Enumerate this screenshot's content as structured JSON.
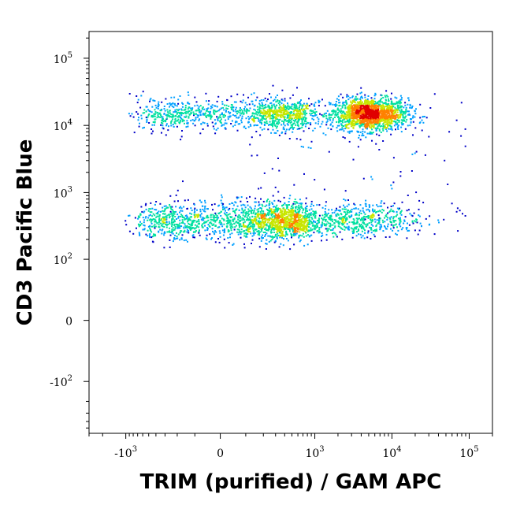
{
  "chart_data": {
    "type": "scatter",
    "title": "",
    "xlabel": "TRIM (purified) / GAM APC",
    "ylabel": "CD3 Pacific Blue",
    "x_scale": "biexponential",
    "y_scale": "biexponential",
    "xlim": [
      -3000,
      200000
    ],
    "ylim": [
      -600,
      250000
    ],
    "x_ticks": [
      {
        "value": -1000,
        "base": "-10",
        "exp": "3"
      },
      {
        "value": 0,
        "base": "0",
        "exp": ""
      },
      {
        "value": 1000,
        "base": "10",
        "exp": "3"
      },
      {
        "value": 10000,
        "base": "10",
        "exp": "4"
      },
      {
        "value": 100000,
        "base": "10",
        "exp": "5"
      }
    ],
    "y_ticks": [
      {
        "value": 100000,
        "base": "10",
        "exp": "5"
      },
      {
        "value": 10000,
        "base": "10",
        "exp": "4"
      },
      {
        "value": 1000,
        "base": "10",
        "exp": "3"
      },
      {
        "value": 100,
        "base": "10",
        "exp": "2"
      },
      {
        "value": 0,
        "base": "0",
        "exp": ""
      },
      {
        "value": -100,
        "base": "-10",
        "exp": "2"
      }
    ],
    "populations": [
      {
        "name_hint": "CD3+ TRIM high",
        "center_x": 5000,
        "center_y": 15000,
        "spread_x_decades": 0.25,
        "spread_y_decades": 0.12,
        "weight": 0.32
      },
      {
        "name_hint": "CD3+ TRIM low",
        "center_x": 150,
        "center_y": 15000,
        "spread_x_decades": 0.25,
        "spread_y_decades": 0.12,
        "weight": 0.22
      },
      {
        "name_hint": "CD3- cluster",
        "center_x": 150,
        "center_y": 380,
        "spread_x_decades": 0.25,
        "spread_y_decades": 0.14,
        "weight": 0.34
      },
      {
        "name_hint": "CD3- tail",
        "center_x": 3000,
        "center_y": 400,
        "spread_x_decades": 0.45,
        "spread_y_decades": 0.12,
        "weight": 0.12
      }
    ],
    "color_scale": [
      "#0000c8",
      "#00a0ff",
      "#00e0a0",
      "#c8e600",
      "#ff8000",
      "#e00000"
    ],
    "grid": false,
    "legend": "none"
  }
}
